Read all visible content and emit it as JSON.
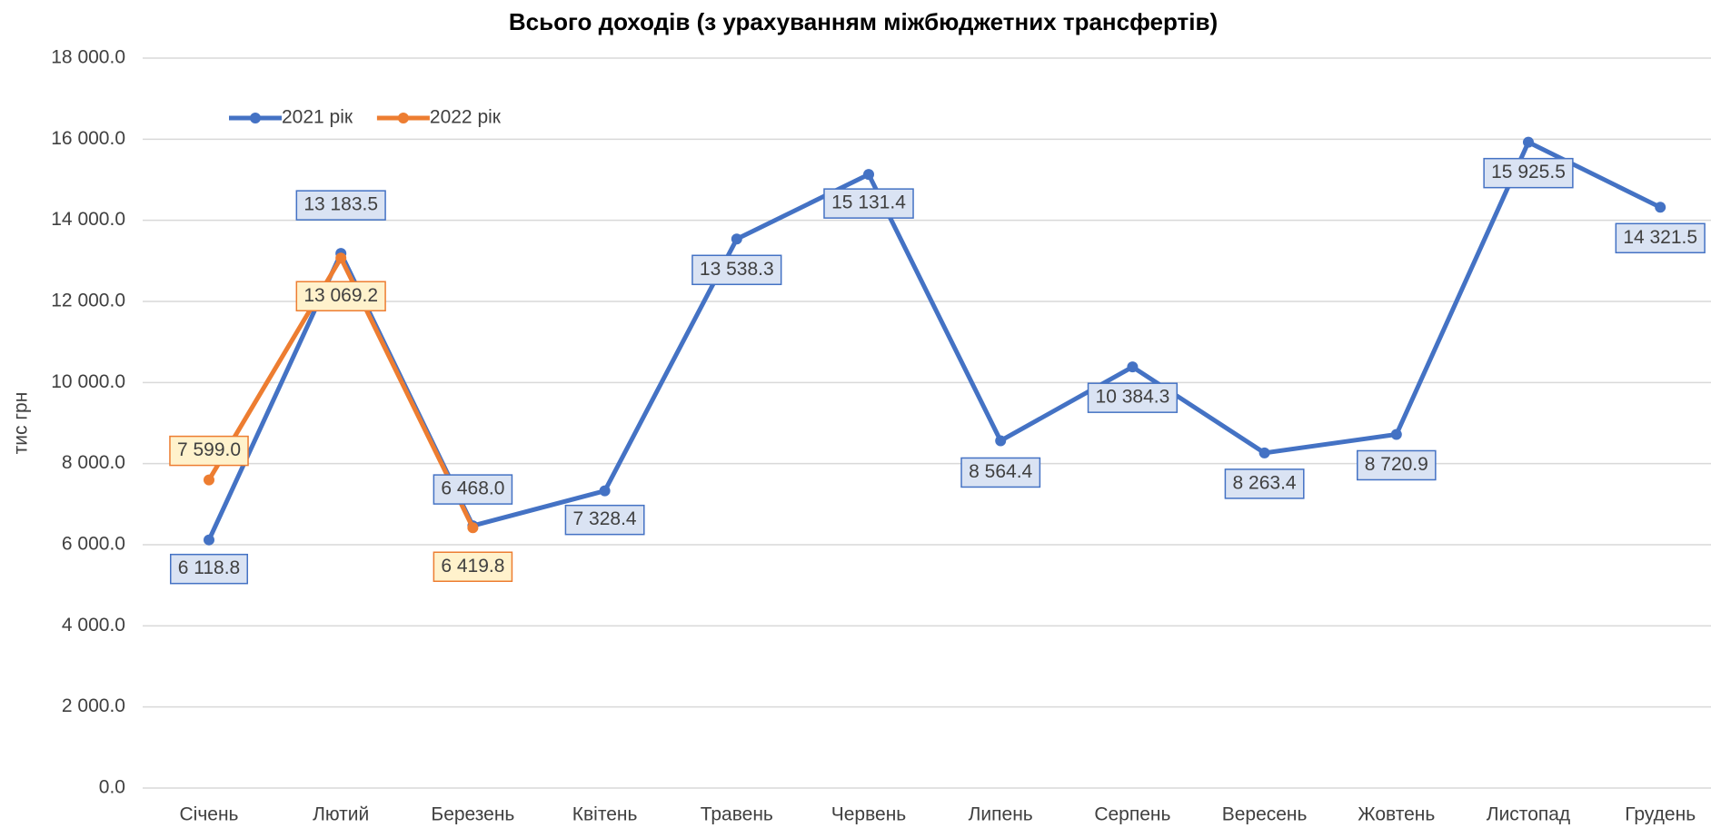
{
  "chart_data": {
    "type": "line",
    "title": "Всього доходів (з урахуванням міжбюджетних трансфертів)",
    "y_label": "тис грн",
    "categories": [
      "Січень",
      "Лютий",
      "Березень",
      "Квітень",
      "Травень",
      "Червень",
      "Липень",
      "Серпень",
      "Вересень",
      "Жовтень",
      "Листопад",
      "Грудень"
    ],
    "series": [
      {
        "name": "2021 рік",
        "color": "#4472c4",
        "values": [
          6118.8,
          13183.5,
          6468.0,
          7328.4,
          13538.3,
          15131.4,
          8564.4,
          10384.3,
          8263.4,
          8720.9,
          15925.5,
          14321.5
        ],
        "value_labels": [
          "6 118.8",
          "13 183.5",
          "6 468.0",
          "7 328.4",
          "13 538.3",
          "15 131.4",
          "8 564.4",
          "10 384.3",
          "8 263.4",
          "8 720.9",
          "15 925.5",
          "14 321.5"
        ]
      },
      {
        "name": "2022 рік",
        "color": "#ed7d31",
        "values": [
          7599.0,
          13069.2,
          6419.8,
          null,
          null,
          null,
          null,
          null,
          null,
          null,
          null,
          null
        ],
        "value_labels": [
          "7 599.0",
          "13 069.2",
          "6 419.8",
          null,
          null,
          null,
          null,
          null,
          null,
          null,
          null,
          null
        ]
      }
    ],
    "ylim": [
      0,
      18000
    ],
    "yticks": [
      {
        "value": 0,
        "label": "0.0"
      },
      {
        "value": 2000,
        "label": "2 000.0"
      },
      {
        "value": 4000,
        "label": "4 000.0"
      },
      {
        "value": 6000,
        "label": "6 000.0"
      },
      {
        "value": 8000,
        "label": "8 000.0"
      },
      {
        "value": 10000,
        "label": "10 000.0"
      },
      {
        "value": 12000,
        "label": "12 000.0"
      },
      {
        "value": 14000,
        "label": "14 000.0"
      },
      {
        "value": 16000,
        "label": "16 000.0"
      },
      {
        "value": 18000,
        "label": "18 000.0"
      }
    ],
    "grid": true,
    "legend": "top-left"
  }
}
